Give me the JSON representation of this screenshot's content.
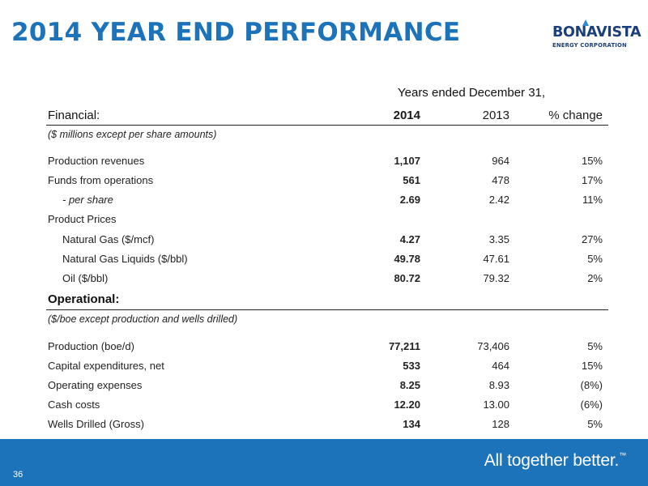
{
  "header": {
    "title": "2014 YEAR END PERFORMANCE",
    "logo_name": "BONAVISTA",
    "logo_subtitle": "ENERGY CORPORATION"
  },
  "table": {
    "years_header": "Years ended December 31,",
    "financial_label": "Financial:",
    "col_2014": "2014",
    "col_2013": "2013",
    "col_change": "% change",
    "financial_note": "($ millions except per share amounts)",
    "financial_rows": [
      {
        "label": "Production revenues",
        "v2014": "1,107",
        "v2013": "964",
        "change": "15%"
      },
      {
        "label": "Funds from operations",
        "v2014": "561",
        "v2013": "478",
        "change": "17%"
      },
      {
        "label": "- per share",
        "v2014": "2.69",
        "v2013": "2.42",
        "change": "11%"
      },
      {
        "label": "Product Prices",
        "v2014": "",
        "v2013": "",
        "change": ""
      },
      {
        "label": "Natural Gas ($/mcf)",
        "v2014": "4.27",
        "v2013": "3.35",
        "change": "27%"
      },
      {
        "label": "Natural Gas Liquids ($/bbl)",
        "v2014": "49.78",
        "v2013": "47.61",
        "change": "5%"
      },
      {
        "label": "Oil ($/bbl)",
        "v2014": "80.72",
        "v2013": "79.32",
        "change": "2%"
      }
    ],
    "operational_label": "Operational:",
    "operational_note": "($/boe except production and wells drilled)",
    "operational_rows": [
      {
        "label": "Production (boe/d)",
        "v2014": "77,211",
        "v2013": "73,406",
        "change": "5%"
      },
      {
        "label": "Capital expenditures, net",
        "v2014": "533",
        "v2013": "464",
        "change": "15%"
      },
      {
        "label": "Operating expenses",
        "v2014": "8.25",
        "v2013": "8.93",
        "change": "(8%)"
      },
      {
        "label": "Cash costs",
        "v2014": "12.20",
        "v2013": "13.00",
        "change": "(6%)"
      },
      {
        "label": "Wells Drilled (Gross)",
        "v2014": "134",
        "v2013": "128",
        "change": "5%"
      }
    ]
  },
  "footer": {
    "page_number": "36",
    "tagline": "All together better.",
    "trademark": "™"
  },
  "colors": {
    "brand_blue": "#1d73b9",
    "logo_navy": "#1b3f78"
  }
}
